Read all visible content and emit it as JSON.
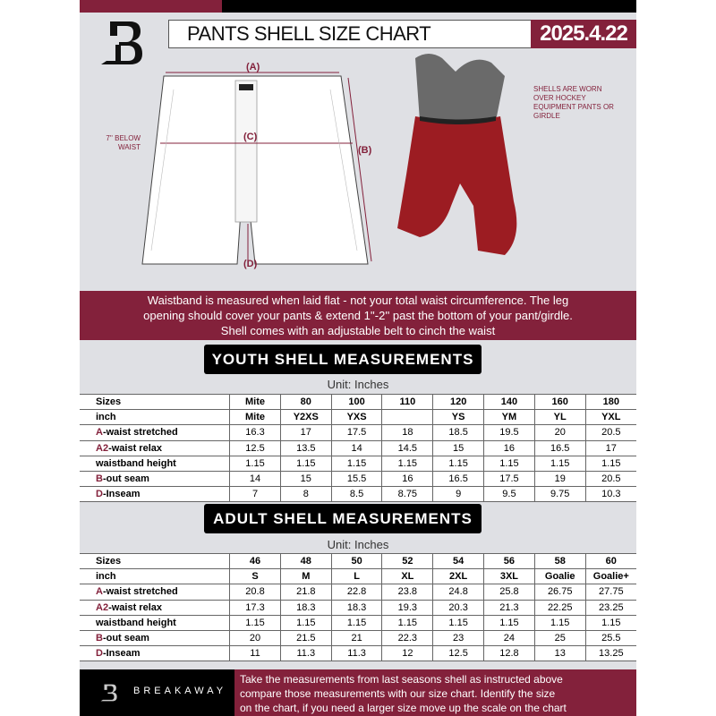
{
  "header": {
    "title": "PANTS SHELL SIZE CHART",
    "date": "2025.4.22",
    "logo_letter": "B"
  },
  "diagram": {
    "label_a": "(A)",
    "label_b": "(B)",
    "label_c": "(C)",
    "label_d": "(D)",
    "below_waist_note": "7'' BELOW WAIST",
    "shell_note": "SHELLS ARE WORN OVER HOCKEY EQUIPMENT PANTS OR GIRDLE"
  },
  "banner": {
    "line1": "Waistband is measured when laid flat - not your total waist circumference. The leg",
    "line2": "opening should cover your pants & extend 1''-2'' past the bottom of your pant/girdle.",
    "line3": "Shell comes with an adjustable belt to cinch the waist"
  },
  "youth": {
    "heading": "YOUTH SHELL MEASUREMENTS",
    "unit": "Unit: Inches",
    "rows": [
      {
        "prefix": "",
        "label": "Sizes",
        "values": [
          "Mite",
          "80",
          "100",
          "110",
          "120",
          "140",
          "160",
          "180"
        ]
      },
      {
        "prefix": "",
        "label": "inch",
        "values": [
          "Mite",
          "Y2XS",
          "YXS",
          "",
          "YS",
          "YM",
          "YL",
          "YXL"
        ]
      },
      {
        "prefix": "A",
        "label": "-waist stretched",
        "values": [
          "16.3",
          "17",
          "17.5",
          "18",
          "18.5",
          "19.5",
          "20",
          "20.5"
        ]
      },
      {
        "prefix": "A2",
        "label": "-waist relax",
        "values": [
          "12.5",
          "13.5",
          "14",
          "14.5",
          "15",
          "16",
          "16.5",
          "17"
        ]
      },
      {
        "prefix": "",
        "label": "waistband height",
        "values": [
          "1.15",
          "1.15",
          "1.15",
          "1.15",
          "1.15",
          "1.15",
          "1.15",
          "1.15"
        ]
      },
      {
        "prefix": "B",
        "label": "-out seam",
        "values": [
          "14",
          "15",
          "15.5",
          "16",
          "16.5",
          "17.5",
          "19",
          "20.5"
        ]
      },
      {
        "prefix": "D",
        "label": "-Inseam",
        "values": [
          "7",
          "8",
          "8.5",
          "8.75",
          "9",
          "9.5",
          "9.75",
          "10.3"
        ]
      }
    ]
  },
  "adult": {
    "heading": "ADULT SHELL MEASUREMENTS",
    "unit": "Unit: Inches",
    "rows": [
      {
        "prefix": "",
        "label": "Sizes",
        "values": [
          "46",
          "48",
          "50",
          "52",
          "54",
          "56",
          "58",
          "60"
        ]
      },
      {
        "prefix": "",
        "label": "inch",
        "values": [
          "S",
          "M",
          "L",
          "XL",
          "2XL",
          "3XL",
          "Goalie",
          "Goalie+"
        ]
      },
      {
        "prefix": "A",
        "label": "-waist stretched",
        "values": [
          "20.8",
          "21.8",
          "22.8",
          "23.8",
          "24.8",
          "25.8",
          "26.75",
          "27.75"
        ]
      },
      {
        "prefix": "A2",
        "label": "-waist relax",
        "values": [
          "17.3",
          "18.3",
          "18.3",
          "19.3",
          "20.3",
          "21.3",
          "22.25",
          "23.25"
        ]
      },
      {
        "prefix": "",
        "label": "waistband height",
        "values": [
          "1.15",
          "1.15",
          "1.15",
          "1.15",
          "1.15",
          "1.15",
          "1.15",
          "1.15"
        ]
      },
      {
        "prefix": "B",
        "label": "-out seam",
        "values": [
          "20",
          "21.5",
          "21",
          "22.3",
          "23",
          "24",
          "25",
          "25.5"
        ]
      },
      {
        "prefix": "D",
        "label": "-Inseam",
        "values": [
          "11",
          "11.3",
          "11.3",
          "12",
          "12.5",
          "12.8",
          "13",
          "13.25"
        ]
      }
    ]
  },
  "footer": {
    "brand": "BREAKAWAY",
    "line1": "Take the measurements from last seasons shell as instructed above",
    "line2": "compare those measurements  with our size chart. Identify the size",
    "line3": "on the chart, if you need a larger size move up the scale on the chart"
  },
  "colors": {
    "accent": "#83213b",
    "background": "#dfe0e4"
  }
}
